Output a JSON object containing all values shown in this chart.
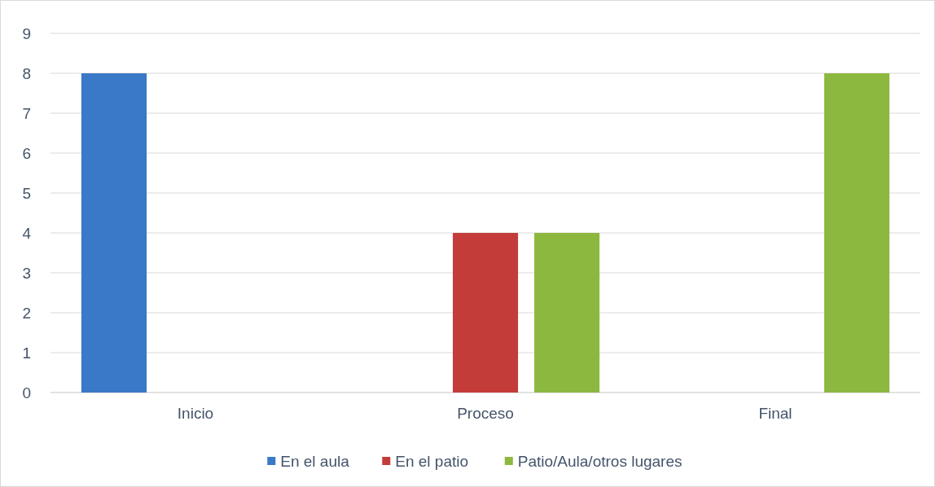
{
  "chart_data": {
    "type": "bar",
    "categories": [
      "Inicio",
      "Proceso",
      "Final"
    ],
    "series": [
      {
        "name": "En el aula",
        "color": "#3a78c8",
        "values": [
          8,
          0,
          0
        ]
      },
      {
        "name": "En el patio",
        "color": "#c43c39",
        "values": [
          0,
          4,
          0
        ]
      },
      {
        "name": "Patio/Aula/otros lugares",
        "color": "#8db83f",
        "values": [
          0,
          4,
          8
        ]
      }
    ],
    "ylim": [
      0,
      9
    ],
    "yticks": [
      0,
      1,
      2,
      3,
      4,
      5,
      6,
      7,
      8,
      9
    ],
    "grid": "y",
    "legend": "bottom"
  }
}
